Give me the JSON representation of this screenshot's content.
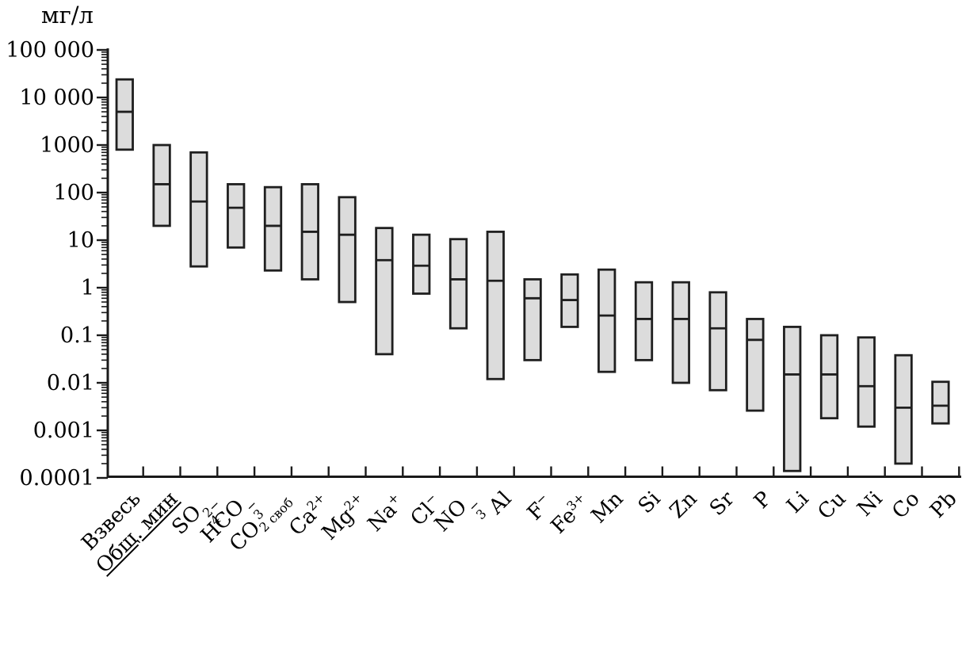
{
  "figure": {
    "unit_label": "мг/л",
    "colors": {
      "background": "#ffffff",
      "axis_ink": "#1a1a1a",
      "box_fill": "#dcdcdc",
      "box_border": "#1f1f1f",
      "text": "#000000"
    }
  },
  "chart_data": {
    "type": "box-range",
    "title": "",
    "ylabel": "мг/л",
    "xlabel": "",
    "y_scale": "log",
    "ylim": [
      0.0001,
      100000
    ],
    "y_ticks": [
      100000,
      10000,
      1000,
      100,
      10,
      1,
      0.1,
      0.01,
      0.001,
      0.0001
    ],
    "y_tick_labels": [
      "100 000",
      "10 000",
      "1000",
      "100",
      "10",
      "1",
      "0.1",
      "0.01",
      "0.001",
      "0.0001"
    ],
    "grid": false,
    "legend_position": "none",
    "categories": [
      "Взвесь",
      "Общ. мин",
      "SO₄²⁻",
      "HCO₃⁻",
      "CO₂ своб",
      "Ca²⁺",
      "Mg²⁺",
      "Na⁺",
      "Cl⁻",
      "NO₃⁻",
      "Al",
      "F⁻",
      "Fe³⁺",
      "Mn",
      "Si",
      "Zn",
      "Sr",
      "P",
      "Li",
      "Cu",
      "Ni",
      "Co",
      "Pb"
    ],
    "points": [
      {
        "label": "Взвесь",
        "min": 800,
        "median": 5000,
        "max": 24000,
        "runs": [
          {
            "t": "Взвесь"
          }
        ]
      },
      {
        "label": "Общ. мин",
        "min": 20,
        "median": 150,
        "max": 1000,
        "underline": true,
        "runs": [
          {
            "t": "Общ. мин"
          }
        ]
      },
      {
        "label": "SO₄²⁻",
        "min": 2.8,
        "median": 65,
        "max": 700,
        "runs": [
          {
            "t": "SO"
          },
          {
            "sub": "4",
            "sup": "2−"
          }
        ]
      },
      {
        "label": "HCO₃⁻",
        "min": 7,
        "median": 48,
        "max": 150,
        "runs": [
          {
            "t": "HCO"
          },
          {
            "sub": "3",
            "sup": "−"
          }
        ]
      },
      {
        "label": "CO₂ своб",
        "min": 2.3,
        "median": 20,
        "max": 130,
        "runs": [
          {
            "t": "CO"
          },
          {
            "sub": "2 своб"
          }
        ]
      },
      {
        "label": "Ca²⁺",
        "min": 1.5,
        "median": 15,
        "max": 150,
        "runs": [
          {
            "t": "Ca"
          },
          {
            "sup": "2+"
          }
        ]
      },
      {
        "label": "Mg²⁺",
        "min": 0.5,
        "median": 13,
        "max": 80,
        "runs": [
          {
            "t": "Mg"
          },
          {
            "sup": "2+"
          }
        ]
      },
      {
        "label": "Na⁺",
        "min": 0.04,
        "median": 3.8,
        "max": 18,
        "runs": [
          {
            "t": "Na"
          },
          {
            "sup": "+"
          }
        ]
      },
      {
        "label": "Cl⁻",
        "min": 0.75,
        "median": 2.9,
        "max": 13,
        "runs": [
          {
            "t": "Cl"
          },
          {
            "sup": "−"
          }
        ]
      },
      {
        "label": "NO₃⁻",
        "min": 0.14,
        "median": 1.5,
        "max": 10.5,
        "runs": [
          {
            "t": "NO"
          },
          {
            "sub": "3",
            "sup": "−"
          }
        ]
      },
      {
        "label": "Al",
        "min": 0.012,
        "median": 1.4,
        "max": 15,
        "runs": [
          {
            "t": "Al"
          }
        ]
      },
      {
        "label": "F⁻",
        "min": 0.03,
        "median": 0.6,
        "max": 1.5,
        "runs": [
          {
            "t": "F"
          },
          {
            "sup": "−"
          }
        ]
      },
      {
        "label": "Fe³⁺",
        "min": 0.15,
        "median": 0.55,
        "max": 1.9,
        "runs": [
          {
            "t": "Fe"
          },
          {
            "sup": "3+"
          }
        ]
      },
      {
        "label": "Mn",
        "min": 0.017,
        "median": 0.26,
        "max": 2.4,
        "runs": [
          {
            "t": "Mn"
          }
        ]
      },
      {
        "label": "Si",
        "min": 0.03,
        "median": 0.22,
        "max": 1.3,
        "runs": [
          {
            "t": "Si"
          }
        ]
      },
      {
        "label": "Zn",
        "min": 0.01,
        "median": 0.22,
        "max": 1.3,
        "runs": [
          {
            "t": "Zn"
          }
        ]
      },
      {
        "label": "Sr",
        "min": 0.007,
        "median": 0.14,
        "max": 0.8,
        "runs": [
          {
            "t": "Sr"
          }
        ]
      },
      {
        "label": "P",
        "min": 0.0026,
        "median": 0.08,
        "max": 0.22,
        "runs": [
          {
            "t": "P"
          }
        ]
      },
      {
        "label": "Li",
        "min": 0.00014,
        "median": 0.015,
        "max": 0.15,
        "runs": [
          {
            "t": "Li"
          }
        ]
      },
      {
        "label": "Cu",
        "min": 0.0018,
        "median": 0.015,
        "max": 0.1,
        "runs": [
          {
            "t": "Cu"
          }
        ]
      },
      {
        "label": "Ni",
        "min": 0.0012,
        "median": 0.0085,
        "max": 0.09,
        "runs": [
          {
            "t": "Ni"
          }
        ]
      },
      {
        "label": "Co",
        "min": 0.0002,
        "median": 0.003,
        "max": 0.038,
        "runs": [
          {
            "t": "Co"
          }
        ]
      },
      {
        "label": "Pb",
        "min": 0.0014,
        "median": 0.0033,
        "max": 0.0105,
        "runs": [
          {
            "t": "Pb"
          }
        ]
      }
    ]
  }
}
